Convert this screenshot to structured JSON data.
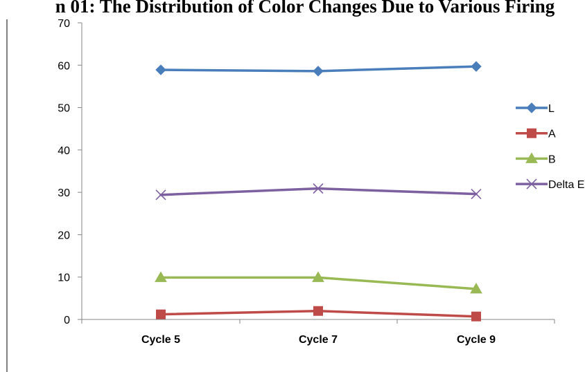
{
  "chart_data": {
    "type": "line",
    "title": "n 01: The Distribution of Color Changes Due to Various Firing",
    "xlabel": "",
    "ylabel": "",
    "categories": [
      "Cycle 5",
      "Cycle 7",
      "Cycle 9"
    ],
    "ylim": [
      0,
      70
    ],
    "yticks": [
      0,
      10,
      20,
      30,
      40,
      50,
      60,
      70
    ],
    "grid": false,
    "legend_position": "right",
    "series": [
      {
        "name": "L",
        "values": [
          58.9,
          58.6,
          59.7
        ],
        "color": "#4a7ebb",
        "marker": "diamond"
      },
      {
        "name": "A",
        "values": [
          1.2,
          2.0,
          0.7
        ],
        "color": "#be4b48",
        "marker": "square"
      },
      {
        "name": "B",
        "values": [
          9.9,
          9.9,
          7.2
        ],
        "color": "#98b954",
        "marker": "triangle"
      },
      {
        "name": "Delta E",
        "values": [
          29.4,
          30.9,
          29.6
        ],
        "color": "#7d60a0",
        "marker": "x"
      }
    ]
  }
}
